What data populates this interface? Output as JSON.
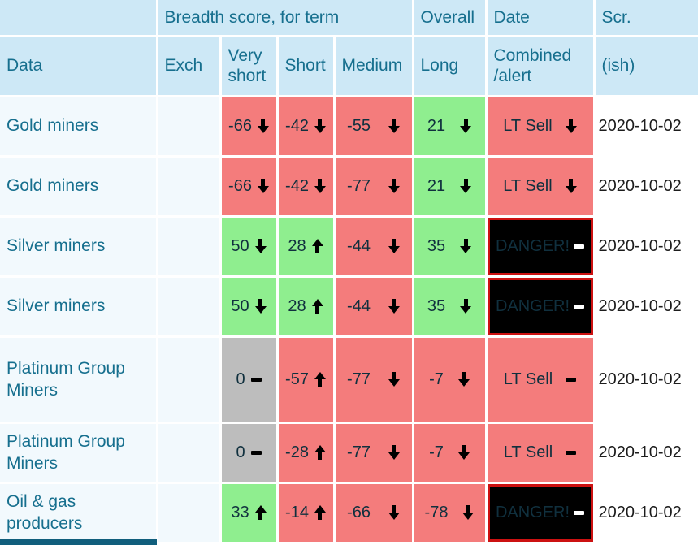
{
  "header": {
    "groups": {
      "breadth": "Breadth score, for term",
      "overall": "Overall",
      "date": "Date",
      "scr": "Scr."
    },
    "columns": {
      "data": "Data",
      "exch": "Exch",
      "very_short": "Very short",
      "short": "Short",
      "medium": "Medium",
      "long": "Long",
      "combined": "Combined /alert",
      "ish": "(ish)"
    }
  },
  "colors": {
    "header_bg": "#cde8f6",
    "header_text": "#166f8e",
    "row_bg": "#f2f9fd",
    "date_bg": "#ffffff",
    "sell_red": "#f47c7c",
    "buy_green": "#8fee8f",
    "neutral_gray": "#bdbdbd",
    "danger_bg": "#000000",
    "danger_border": "#cc1111",
    "danger_text": "#ffffff",
    "value_text": "#10303e",
    "date_text": "#1c1c1c",
    "icon_color": "#000000",
    "footer_bar": "#115e7c"
  },
  "rows": [
    {
      "data": "Gold miners",
      "exch": "",
      "date": "2020-10-02",
      "tall": false,
      "cells": {
        "very_short": {
          "value": "-66",
          "icon": "down-arrow",
          "state": "red"
        },
        "short": {
          "value": "-42",
          "icon": "down-arrow",
          "state": "red"
        },
        "medium": {
          "value": "-55",
          "icon": "down-arrow",
          "state": "red"
        },
        "long": {
          "value": "21",
          "icon": "down-arrow",
          "state": "green"
        },
        "combined": {
          "value": "LT Sell",
          "icon": "down-arrow",
          "state": "red"
        }
      }
    },
    {
      "data": "Gold miners",
      "exch": "",
      "date": "2020-10-02",
      "tall": false,
      "cells": {
        "very_short": {
          "value": "-66",
          "icon": "down-arrow",
          "state": "red"
        },
        "short": {
          "value": "-42",
          "icon": "down-arrow",
          "state": "red"
        },
        "medium": {
          "value": "-77",
          "icon": "down-arrow",
          "state": "red"
        },
        "long": {
          "value": "21",
          "icon": "down-arrow",
          "state": "green"
        },
        "combined": {
          "value": "LT Sell",
          "icon": "down-arrow",
          "state": "red"
        }
      }
    },
    {
      "data": "Silver miners",
      "exch": "",
      "date": "2020-10-02",
      "tall": false,
      "cells": {
        "very_short": {
          "value": "50",
          "icon": "down-arrow",
          "state": "green"
        },
        "short": {
          "value": "28",
          "icon": "up-arrow",
          "state": "green"
        },
        "medium": {
          "value": "-44",
          "icon": "down-arrow",
          "state": "red"
        },
        "long": {
          "value": "35",
          "icon": "down-arrow",
          "state": "green"
        },
        "combined": {
          "value": "DANGER!",
          "icon": "dash",
          "state": "danger"
        }
      }
    },
    {
      "data": "Silver miners",
      "exch": "",
      "date": "2020-10-02",
      "tall": false,
      "cells": {
        "very_short": {
          "value": "50",
          "icon": "down-arrow",
          "state": "green"
        },
        "short": {
          "value": "28",
          "icon": "up-arrow",
          "state": "green"
        },
        "medium": {
          "value": "-44",
          "icon": "down-arrow",
          "state": "red"
        },
        "long": {
          "value": "35",
          "icon": "down-arrow",
          "state": "green"
        },
        "combined": {
          "value": "DANGER!",
          "icon": "dash",
          "state": "danger"
        }
      }
    },
    {
      "data": "Platinum Group Miners",
      "exch": "",
      "date": "2020-10-02",
      "tall": true,
      "cells": {
        "very_short": {
          "value": "0",
          "icon": "dash",
          "state": "gray"
        },
        "short": {
          "value": "-57",
          "icon": "up-arrow",
          "state": "red"
        },
        "medium": {
          "value": "-77",
          "icon": "down-arrow",
          "state": "red"
        },
        "long": {
          "value": "-7",
          "icon": "down-arrow",
          "state": "red"
        },
        "combined": {
          "value": "LT Sell",
          "icon": "dash",
          "state": "red"
        }
      }
    },
    {
      "data": "Platinum Group Miners",
      "exch": "",
      "date": "2020-10-02",
      "tall": false,
      "cells": {
        "very_short": {
          "value": "0",
          "icon": "dash",
          "state": "gray"
        },
        "short": {
          "value": "-28",
          "icon": "up-arrow",
          "state": "red"
        },
        "medium": {
          "value": "-77",
          "icon": "down-arrow",
          "state": "red"
        },
        "long": {
          "value": "-7",
          "icon": "down-arrow",
          "state": "red"
        },
        "combined": {
          "value": "LT Sell",
          "icon": "dash",
          "state": "red"
        }
      }
    },
    {
      "data": "Oil & gas producers",
      "exch": "",
      "date": "2020-10-02",
      "tall": false,
      "cells": {
        "very_short": {
          "value": "33",
          "icon": "up-arrow",
          "state": "green"
        },
        "short": {
          "value": "-14",
          "icon": "up-arrow",
          "state": "red"
        },
        "medium": {
          "value": "-66",
          "icon": "down-arrow",
          "state": "red"
        },
        "long": {
          "value": "-78",
          "icon": "down-arrow",
          "state": "red"
        },
        "combined": {
          "value": "DANGER!",
          "icon": "dash",
          "state": "danger"
        }
      }
    }
  ]
}
